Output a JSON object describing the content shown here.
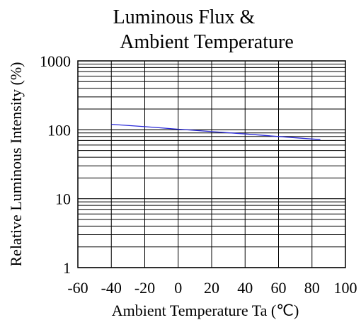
{
  "chart_data": {
    "type": "line",
    "title_lines": [
      "Luminous Flux &",
      "Ambient Temperature"
    ],
    "xlabel": "Ambient Temperature Ta (℃)",
    "ylabel": "Relative Luminous Intensity (%)",
    "x_scale": "linear",
    "y_scale": "log",
    "xlim": [
      -60,
      100
    ],
    "ylim": [
      1,
      1000
    ],
    "x_ticks": [
      -60,
      -40,
      -20,
      0,
      20,
      40,
      60,
      80,
      100
    ],
    "x_tick_labels": [
      "-60",
      "-40",
      "-20",
      "0",
      "20",
      "40",
      "60",
      "80",
      "100"
    ],
    "y_ticks": [
      1,
      10,
      100,
      1000
    ],
    "y_tick_labels": [
      "1",
      "10",
      "100",
      "1000"
    ],
    "grid": true,
    "series": [
      {
        "color": "#2b2bd9",
        "x": [
          -40,
          -20,
          0,
          20,
          40,
          60,
          85
        ],
        "y": [
          120,
          111,
          102,
          94,
          87,
          80,
          72
        ]
      }
    ]
  }
}
